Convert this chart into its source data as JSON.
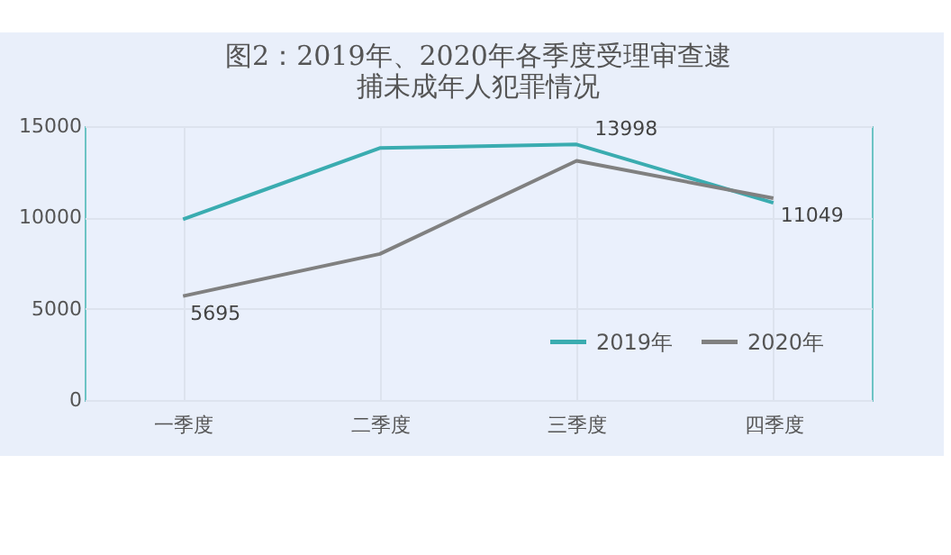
{
  "chart_data": {
    "type": "line",
    "title": "图2：2019年、2020年各季度受理审查逮捕未成年人犯罪情况",
    "categories": [
      "一季度",
      "二季度",
      "三季度",
      "四季度"
    ],
    "series": [
      {
        "name": "2019年",
        "color": "#3aacb0",
        "values": [
          9900,
          13800,
          13998,
          10800
        ],
        "value_labels": [
          null,
          null,
          "13998",
          null
        ]
      },
      {
        "name": "2020年",
        "color": "#808080",
        "values": [
          5695,
          8000,
          13100,
          11049
        ],
        "value_labels": [
          "5695",
          null,
          null,
          "11049"
        ]
      }
    ],
    "ylim": [
      0,
      15000
    ],
    "yticks": [
      0,
      5000,
      10000,
      15000
    ],
    "grid": true,
    "legend": "bottom right",
    "marker": "none",
    "line_style": "solid"
  }
}
